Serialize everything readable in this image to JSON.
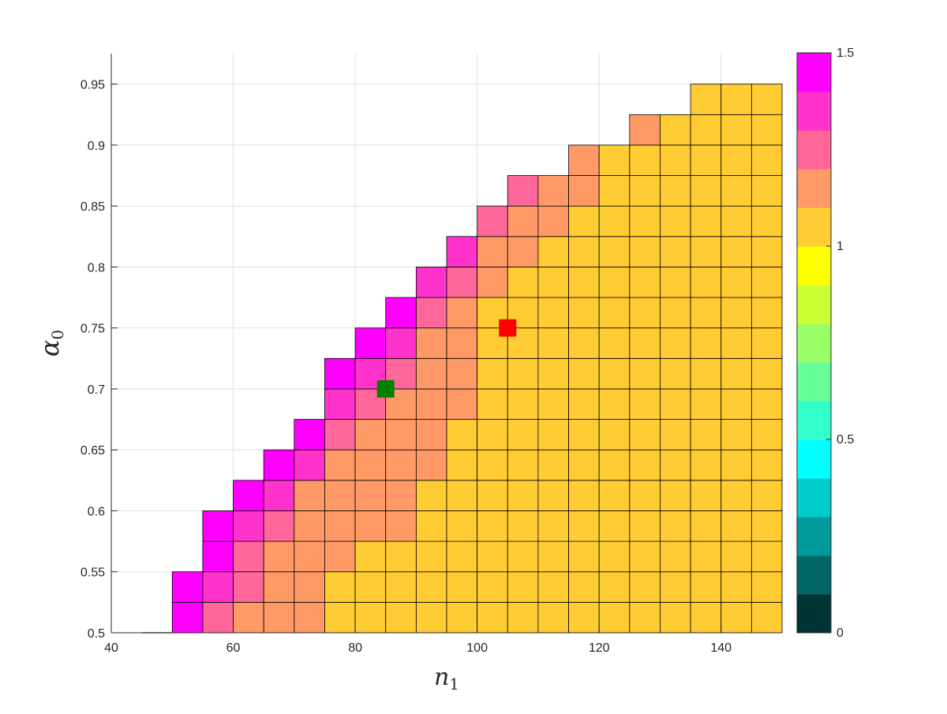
{
  "chart_data": {
    "type": "heatmap",
    "title": "",
    "xlabel": {
      "symbol": "n",
      "subscript": "1"
    },
    "ylabel": {
      "symbol": "α",
      "subscript": "0"
    },
    "xlim": [
      40,
      150
    ],
    "ylim": [
      0.5,
      0.975
    ],
    "x_ticks": [
      40,
      60,
      80,
      100,
      120,
      140
    ],
    "y_ticks": [
      0.5,
      0.55,
      0.6,
      0.65,
      0.7,
      0.75,
      0.8,
      0.85,
      0.9,
      0.95
    ],
    "x_tick_labels": [
      "40",
      "60",
      "80",
      "100",
      "120",
      "140"
    ],
    "y_tick_labels": [
      "0.5",
      "0.55",
      "0.6",
      "0.65",
      "0.7",
      "0.75",
      "0.8",
      "0.85",
      "0.9",
      "0.95"
    ],
    "grid": true,
    "cell_width": 5,
    "cell_height": 0.025,
    "x_start": 50,
    "columns_note": "each column: cells from y=0.5 upward; value = color level index",
    "levels": [
      0.1,
      0.2,
      0.3,
      0.4,
      0.5,
      0.6,
      0.7,
      0.8,
      0.9,
      1.0,
      1.1,
      1.2,
      1.3,
      1.4,
      1.5
    ],
    "colorbar": {
      "min": 0,
      "max": 1.5,
      "ticks": [
        0,
        0.5,
        1,
        1.5
      ],
      "tick_labels": [
        "0",
        "0.5",
        "1",
        "1.5"
      ],
      "colors": [
        "#003333",
        "#006666",
        "#009999",
        "#00cccc",
        "#00ffff",
        "#33ffcc",
        "#66ff99",
        "#99ff66",
        "#ccff33",
        "#ffff00",
        "#ffcc33",
        "#ff9966",
        "#ff6699",
        "#ff33cc",
        "#ff00ff"
      ]
    },
    "columns": [
      {
        "x": 50,
        "values": [
          1.5,
          1.5
        ]
      },
      {
        "x": 55,
        "values": [
          1.3,
          1.4,
          1.5,
          1.5
        ]
      },
      {
        "x": 60,
        "values": [
          1.2,
          1.3,
          1.3,
          1.4,
          1.5
        ]
      },
      {
        "x": 65,
        "values": [
          1.2,
          1.2,
          1.2,
          1.3,
          1.4,
          1.5
        ]
      },
      {
        "x": 70,
        "values": [
          1.2,
          1.2,
          1.2,
          1.2,
          1.2,
          1.4,
          1.5
        ]
      },
      {
        "x": 75,
        "values": [
          1.1,
          1.1,
          1.2,
          1.2,
          1.2,
          1.2,
          1.3,
          1.4,
          1.5
        ]
      },
      {
        "x": 80,
        "values": [
          1.1,
          1.1,
          1.1,
          1.2,
          1.2,
          1.2,
          1.2,
          1.3,
          1.4,
          1.5
        ]
      },
      {
        "x": 85,
        "values": [
          1.1,
          1.1,
          1.1,
          1.2,
          1.2,
          1.2,
          1.2,
          1.2,
          1.3,
          1.4,
          1.5
        ]
      },
      {
        "x": 90,
        "values": [
          1.1,
          1.1,
          1.1,
          1.1,
          1.1,
          1.2,
          1.2,
          1.2,
          1.2,
          1.2,
          1.3,
          1.4
        ]
      },
      {
        "x": 95,
        "values": [
          1.1,
          1.1,
          1.1,
          1.1,
          1.1,
          1.1,
          1.1,
          1.2,
          1.2,
          1.2,
          1.2,
          1.3,
          1.4
        ]
      },
      {
        "x": 100,
        "values": [
          1.1,
          1.1,
          1.1,
          1.1,
          1.1,
          1.1,
          1.1,
          1.1,
          1.1,
          1.1,
          1.1,
          1.2,
          1.2,
          1.3
        ]
      },
      {
        "x": 105,
        "values": [
          1.1,
          1.1,
          1.1,
          1.1,
          1.1,
          1.1,
          1.1,
          1.1,
          1.1,
          1.1,
          1.1,
          1.1,
          1.2,
          1.2,
          1.3
        ]
      },
      {
        "x": 110,
        "values": [
          1.1,
          1.1,
          1.1,
          1.1,
          1.1,
          1.1,
          1.1,
          1.1,
          1.1,
          1.1,
          1.1,
          1.1,
          1.1,
          1.2,
          1.2
        ]
      },
      {
        "x": 115,
        "values": [
          1.1,
          1.1,
          1.1,
          1.1,
          1.1,
          1.1,
          1.1,
          1.1,
          1.1,
          1.1,
          1.1,
          1.1,
          1.1,
          1.1,
          1.2,
          1.2
        ]
      },
      {
        "x": 120,
        "values": [
          1.1,
          1.1,
          1.1,
          1.1,
          1.1,
          1.1,
          1.1,
          1.1,
          1.1,
          1.1,
          1.1,
          1.1,
          1.1,
          1.1,
          1.1,
          1.1
        ]
      },
      {
        "x": 125,
        "values": [
          1.1,
          1.1,
          1.1,
          1.1,
          1.1,
          1.1,
          1.1,
          1.1,
          1.1,
          1.1,
          1.1,
          1.1,
          1.1,
          1.1,
          1.1,
          1.1,
          1.2
        ]
      },
      {
        "x": 130,
        "values": [
          1.1,
          1.1,
          1.1,
          1.1,
          1.1,
          1.1,
          1.1,
          1.1,
          1.1,
          1.1,
          1.1,
          1.1,
          1.1,
          1.1,
          1.1,
          1.1,
          1.1
        ]
      },
      {
        "x": 135,
        "values": [
          1.1,
          1.1,
          1.1,
          1.1,
          1.1,
          1.1,
          1.1,
          1.1,
          1.1,
          1.1,
          1.1,
          1.1,
          1.1,
          1.1,
          1.1,
          1.1,
          1.1,
          1.1
        ]
      },
      {
        "x": 140,
        "values": [
          1.1,
          1.1,
          1.1,
          1.1,
          1.1,
          1.1,
          1.1,
          1.1,
          1.1,
          1.1,
          1.1,
          1.1,
          1.1,
          1.1,
          1.1,
          1.1,
          1.1,
          1.1
        ]
      },
      {
        "x": 145,
        "values": [
          1.1,
          1.1,
          1.1,
          1.1,
          1.1,
          1.1,
          1.1,
          1.1,
          1.1,
          1.1,
          1.1,
          1.1,
          1.1,
          1.1,
          1.1,
          1.1,
          1.1,
          1.1
        ]
      }
    ],
    "baseline_segment": {
      "x": [
        45,
        50
      ],
      "y": 0.5
    },
    "markers": [
      {
        "name": "green-marker",
        "x": 85,
        "y": 0.7,
        "color": "#008000"
      },
      {
        "name": "red-marker",
        "x": 105,
        "y": 0.75,
        "color": "#ff0000"
      }
    ]
  }
}
